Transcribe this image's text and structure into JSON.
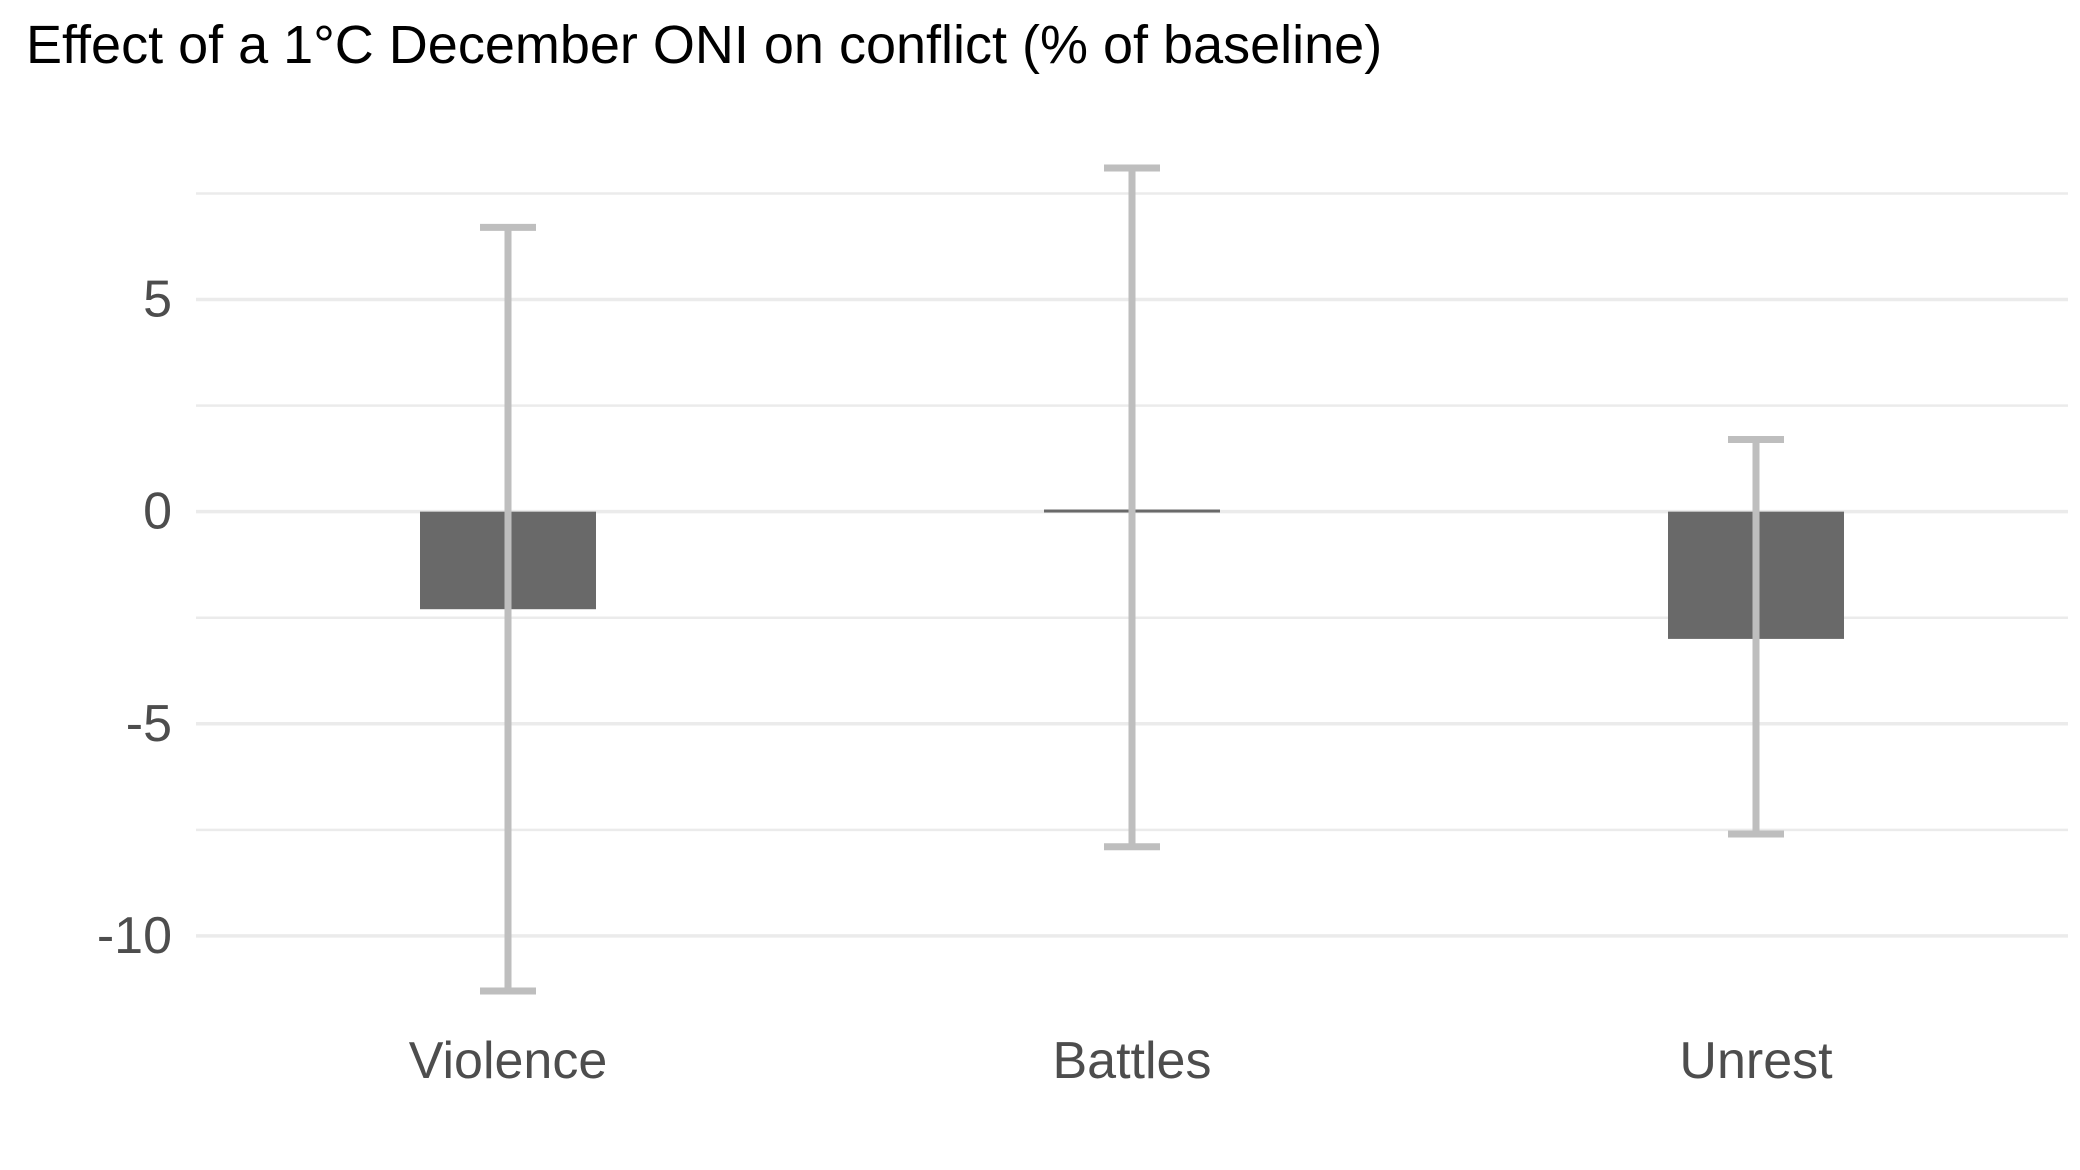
{
  "chart_data": {
    "type": "bar",
    "title": "Effect of a 1°C December ONI on conflict (% of baseline)",
    "xlabel": "",
    "ylabel": "",
    "categories": [
      "Violence",
      "Battles",
      "Unrest"
    ],
    "values": [
      -2.3,
      0.05,
      -3.0
    ],
    "error_low": [
      -11.3,
      -7.9,
      -7.6
    ],
    "error_high": [
      6.7,
      8.1,
      1.7
    ],
    "ylim": [
      -11.7,
      8.1
    ],
    "yticks": [
      -10,
      -5,
      0,
      5
    ],
    "ytick_labels": [
      "-10",
      "-5",
      "0",
      "5"
    ],
    "grid": true,
    "legend": "none",
    "colors": {
      "bar": "#696969",
      "error_bar": "#bebebe",
      "grid": "#ebebeb",
      "tick_text": "#4d4d4d",
      "title_text": "#000000"
    }
  }
}
